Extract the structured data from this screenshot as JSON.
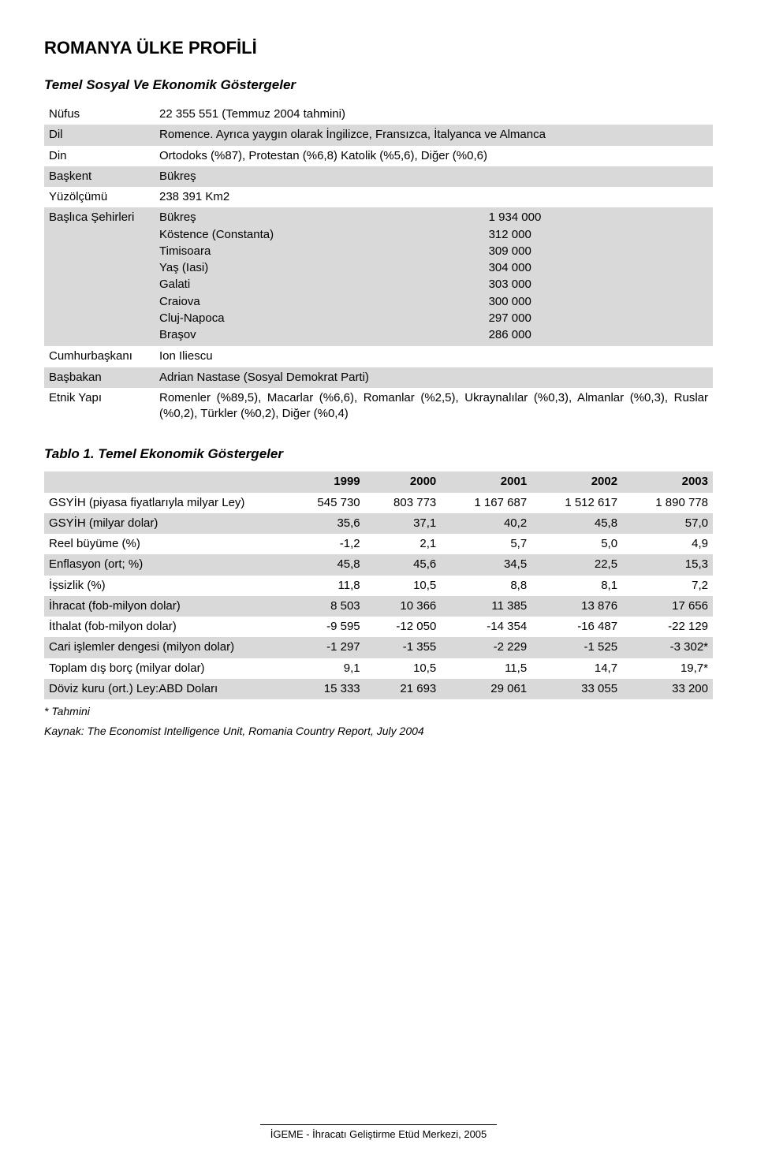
{
  "title": "ROMANYA ÜLKE PROFİLİ",
  "section_heading": "Temel Sosyal Ve Ekonomik Göstergeler",
  "profile": {
    "rows": [
      {
        "key": "Nüfus",
        "value": "22 355 551 (Temmuz 2004 tahmini)",
        "band": false
      },
      {
        "key": "Dil",
        "value": "Romence. Ayrıca yaygın olarak İngilizce, Fransızca, İtalyanca ve Almanca",
        "band": true
      },
      {
        "key": "Din",
        "value": "Ortodoks (%87), Protestan (%6,8) Katolik (%5,6), Diğer (%0,6)",
        "band": false
      },
      {
        "key": "Başkent",
        "value": "Bükreş",
        "band": true
      },
      {
        "key": "Yüzölçümü",
        "value": "238 391 Km2",
        "band": false
      }
    ],
    "cities_key": "Başlıca Şehirleri",
    "cities": [
      {
        "name": "Bükreş",
        "pop": "1 934 000"
      },
      {
        "name": "Köstence (Constanta)",
        "pop": "312 000"
      },
      {
        "name": "Timisoara",
        "pop": "309 000"
      },
      {
        "name": "Yaş (Iasi)",
        "pop": "304 000"
      },
      {
        "name": "Galati",
        "pop": "303 000"
      },
      {
        "name": "Craiova",
        "pop": "300 000"
      },
      {
        "name": "Cluj-Napoca",
        "pop": "297 000"
      },
      {
        "name": "Braşov",
        "pop": "286 000"
      }
    ],
    "rows2": [
      {
        "key": "Cumhurbaşkanı",
        "value": "Ion Iliescu",
        "band": false
      },
      {
        "key": "Başbakan",
        "value": "Adrian Nastase (Sosyal Demokrat Parti)",
        "band": true
      },
      {
        "key": "Etnik Yapı",
        "value": "Romenler (%89,5), Macarlar (%6,6), Romanlar (%2,5), Ukraynalılar (%0,3), Almanlar (%0,3), Ruslar (%0,2), Türkler (%0,2), Diğer (%0,4)",
        "band": false
      }
    ]
  },
  "table1_caption": "Tablo 1. Temel Ekonomik Göstergeler",
  "econ": {
    "years": [
      "1999",
      "2000",
      "2001",
      "2002",
      "2003"
    ],
    "rows": [
      {
        "label": "GSYİH (piyasa fiyatlarıyla milyar Ley)",
        "v": [
          "545 730",
          "803 773",
          "1 167 687",
          "1 512 617",
          "1 890 778"
        ],
        "band": false
      },
      {
        "label": "GSYİH (milyar dolar)",
        "v": [
          "35,6",
          "37,1",
          "40,2",
          "45,8",
          "57,0"
        ],
        "band": true
      },
      {
        "label": "Reel büyüme (%)",
        "v": [
          "-1,2",
          "2,1",
          "5,7",
          "5,0",
          "4,9"
        ],
        "band": false
      },
      {
        "label": "Enflasyon (ort; %)",
        "v": [
          "45,8",
          "45,6",
          "34,5",
          "22,5",
          "15,3"
        ],
        "band": true
      },
      {
        "label": "İşsizlik (%)",
        "v": [
          "11,8",
          "10,5",
          "8,8",
          "8,1",
          "7,2"
        ],
        "band": false
      },
      {
        "label": "İhracat (fob-milyon dolar)",
        "v": [
          "8 503",
          "10 366",
          "11 385",
          "13 876",
          "17 656"
        ],
        "band": true
      },
      {
        "label": "İthalat (fob-milyon dolar)",
        "v": [
          "-9 595",
          "-12 050",
          "-14 354",
          "-16 487",
          "-22 129"
        ],
        "band": false
      },
      {
        "label": "Cari işlemler dengesi (milyon dolar)",
        "v": [
          "-1 297",
          "-1 355",
          "-2 229",
          "-1 525",
          "-3 302*"
        ],
        "band": true
      },
      {
        "label": "Toplam dış borç (milyar dolar)",
        "v": [
          "9,1",
          "10,5",
          "11,5",
          "14,7",
          "19,7*"
        ],
        "band": false
      },
      {
        "label": "Döviz kuru (ort.) Ley:ABD Doları",
        "v": [
          "15 333",
          "21 693",
          "29 061",
          "33 055",
          "33 200"
        ],
        "band": true
      }
    ]
  },
  "footnote1": "* Tahmini",
  "footnote2": "Kaynak: The Economist Intelligence Unit, Romania Country Report, July 2004",
  "footer": "İGEME - İhracatı Geliştirme Etüd Merkezi, 2005"
}
